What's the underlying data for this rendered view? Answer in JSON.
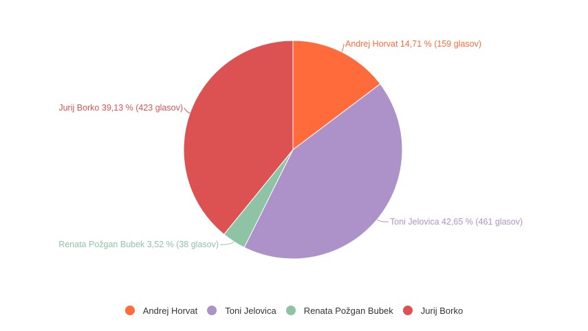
{
  "chart_data": {
    "type": "pie",
    "title": "",
    "slices": [
      {
        "name": "Andrej Horvat",
        "label": "Andrej Horvat 14,71 % (159 glasov)",
        "percent": 14.71,
        "votes": 159,
        "color": "#ff6b3a"
      },
      {
        "name": "Toni Jelovica",
        "label": "Toni Jelovica 42,65 % (461 glasov)",
        "percent": 42.65,
        "votes": 461,
        "color": "#ad92c9"
      },
      {
        "name": "Renata Požgan Bubek",
        "label": "Renata Požgan Bubek 3,52 % (38 glasov)",
        "percent": 3.52,
        "votes": 38,
        "color": "#8ec3a6"
      },
      {
        "name": "Jurij Borko",
        "label": "Jurij Borko 39,13 % (423 glasov)",
        "percent": 39.13,
        "votes": 423,
        "color": "#dc5253"
      }
    ],
    "start_angle_deg": 0,
    "direction": "clockwise",
    "legend_position": "bottom"
  },
  "legend": {
    "items": [
      {
        "label": "Andrej Horvat",
        "color": "#ff6b3a"
      },
      {
        "label": "Toni Jelovica",
        "color": "#ad92c9"
      },
      {
        "label": "Renata Požgan Bubek",
        "color": "#8ec3a6"
      },
      {
        "label": "Jurij Borko",
        "color": "#dc5253"
      }
    ]
  }
}
